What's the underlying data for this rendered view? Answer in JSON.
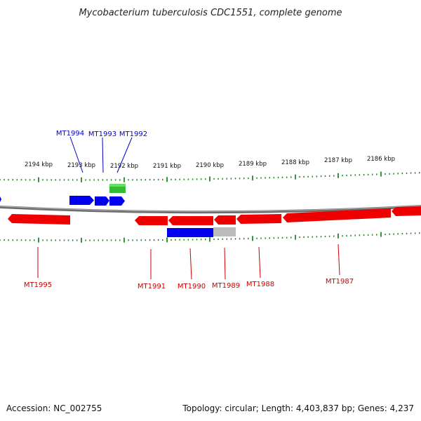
{
  "title": "Mycobacterium tuberculosis CDC1551, complete genome",
  "footer": {
    "accession": "Accession: NC_002755",
    "summary": "Topology: circular; Length: 4,403,837 bp; Genes: 4,237"
  },
  "colors": {
    "forward_gene": "#0000ee",
    "reverse_gene": "#ee0000",
    "rna_gene": "#33bb33",
    "pseudo_gene": "#bbbbbb",
    "backbone": "#808080",
    "tick": "#228822",
    "forward_label": "#0000cc",
    "reverse_label": "#cc0000"
  },
  "tick_labels": [
    "2194 kbp",
    "2193 kbp",
    "2192 kbp",
    "2191 kbp",
    "2190 kbp",
    "2189 kbp",
    "2188 kbp",
    "2187 kbp",
    "2186 kbp"
  ],
  "gene_labels": {
    "forward": [
      "MT1994",
      "MT1993",
      "MT1992"
    ],
    "reverse": [
      "MT1995",
      "MT1991",
      "MT1990",
      "MT1989",
      "MT1988",
      "MT1987"
    ]
  }
}
